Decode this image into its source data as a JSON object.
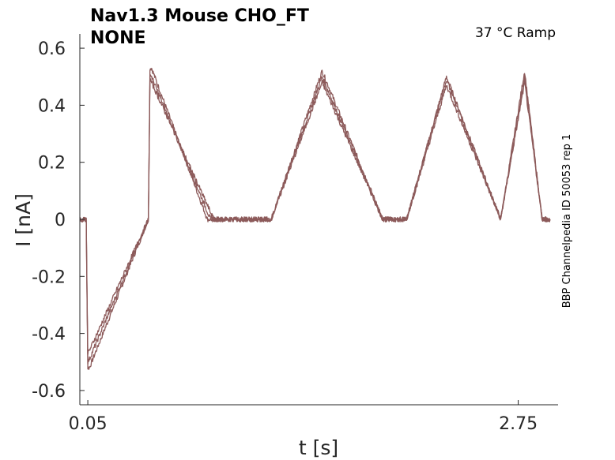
{
  "chart_data": {
    "type": "line",
    "title_line1": "Nav1.3  Mouse  CHO_FT",
    "title_line2": "NONE",
    "annotation": "37 °C  Ramp",
    "side_label": "BBP Channelpedia ID 50053 rep 1",
    "xlabel": "t [s]",
    "ylabel": "I [nA]",
    "xlim": [
      0.0,
      3.0
    ],
    "ylim": [
      -0.65,
      0.65
    ],
    "xticks": [
      0.05,
      2.75
    ],
    "xtick_labels": [
      "0.05",
      "2.75"
    ],
    "yticks": [
      -0.6,
      -0.4,
      -0.2,
      0,
      0.2,
      0.4,
      0.6
    ],
    "ytick_labels": [
      "-0.6",
      "-0.4",
      "-0.2",
      "0",
      "0.2",
      "0.4",
      "0.6"
    ],
    "grid": false,
    "color": "#8c5a5a",
    "series": [
      {
        "x": [
          0.0,
          0.04,
          0.05,
          0.06,
          0.43,
          0.44,
          0.45,
          0.8,
          1.2,
          1.52,
          1.9,
          2.05,
          2.3,
          2.64,
          2.79,
          2.9,
          2.95
        ],
        "y": [
          0.0,
          0.0,
          -0.52,
          -0.52,
          0.0,
          0.53,
          0.53,
          0.0,
          0.0,
          0.52,
          0.0,
          0.0,
          0.5,
          0.0,
          0.52,
          0.0,
          0.0
        ]
      },
      {
        "x": [
          0.0,
          0.04,
          0.05,
          0.06,
          0.43,
          0.44,
          0.45,
          0.82,
          1.2,
          1.52,
          1.9,
          2.05,
          2.3,
          2.64,
          2.79,
          2.9,
          2.95
        ],
        "y": [
          0.0,
          0.0,
          -0.5,
          -0.49,
          0.0,
          0.51,
          0.5,
          0.0,
          0.0,
          0.5,
          0.0,
          0.0,
          0.49,
          0.0,
          0.5,
          0.0,
          0.0
        ]
      },
      {
        "x": [
          0.0,
          0.04,
          0.05,
          0.06,
          0.43,
          0.44,
          0.45,
          0.84,
          1.2,
          1.52,
          1.9,
          2.05,
          2.3,
          2.64,
          2.79,
          2.9,
          2.95
        ],
        "y": [
          0.0,
          0.0,
          -0.47,
          -0.46,
          0.0,
          0.49,
          0.48,
          0.0,
          0.0,
          0.48,
          0.0,
          0.0,
          0.47,
          0.0,
          0.48,
          0.0,
          0.0
        ]
      }
    ]
  }
}
